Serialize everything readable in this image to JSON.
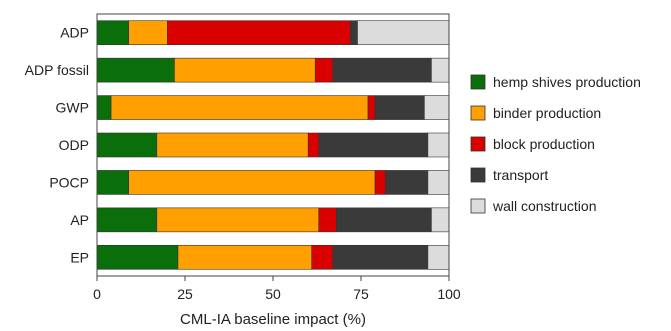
{
  "chart_data": {
    "type": "bar",
    "orientation": "horizontal",
    "stacked": true,
    "title": "",
    "xlabel": "CML-IA baseline impact (%)",
    "ylabel": "",
    "xlim": [
      0,
      100
    ],
    "xticks": [
      0,
      25,
      50,
      75,
      100
    ],
    "grid": false,
    "legend_position": "right",
    "categories": [
      "ADP",
      "ADP fossil",
      "GWP",
      "ODP",
      "POCP",
      "AP",
      "EP"
    ],
    "series": [
      {
        "name": "hemp shives production",
        "color": "#0a6e0a",
        "values": [
          9,
          22,
          4,
          17,
          9,
          17,
          23
        ]
      },
      {
        "name": "binder production",
        "color": "#ffa000",
        "values": [
          11,
          40,
          73,
          43,
          70,
          46,
          38
        ]
      },
      {
        "name": "block production",
        "color": "#d90000",
        "values": [
          52,
          5,
          2,
          3,
          3,
          5,
          6
        ]
      },
      {
        "name": "transport",
        "color": "#3a3a3a",
        "values": [
          2,
          28,
          14,
          31,
          12,
          27,
          27
        ]
      },
      {
        "name": "wall construction",
        "color": "#dcdcdc",
        "values": [
          26,
          5,
          7,
          6,
          6,
          5,
          6
        ]
      }
    ]
  }
}
